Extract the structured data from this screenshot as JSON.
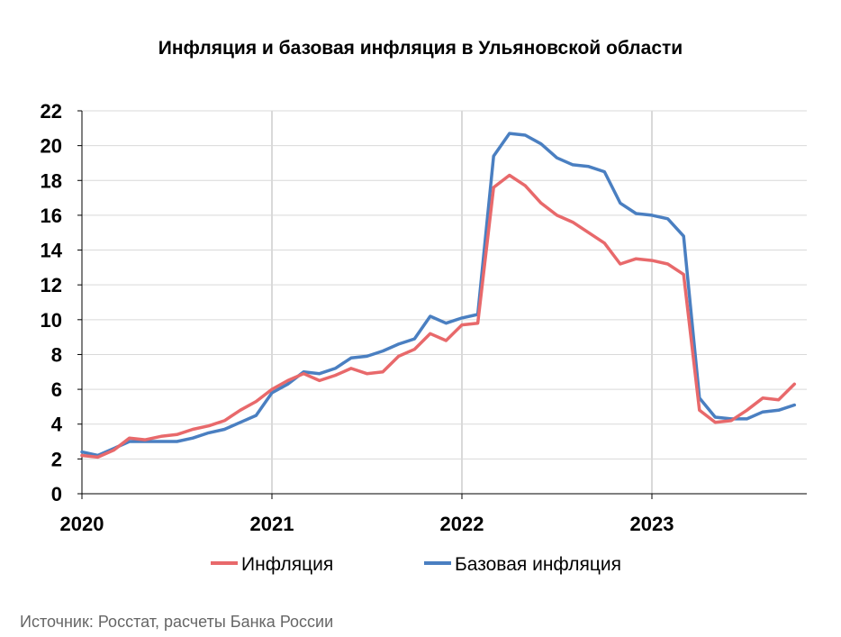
{
  "chart_data": {
    "type": "line",
    "title": "Инфляция и базовая инфляция в Ульяновской области",
    "source": "Источник: Росстат, расчеты Банка России",
    "ylim": [
      0,
      22
    ],
    "yticks": [
      "0",
      "2",
      "4",
      "6",
      "8",
      "10",
      "12",
      "14",
      "16",
      "18",
      "20",
      "22"
    ],
    "xlim": [
      2020.0,
      2023.75
    ],
    "xticks": [
      {
        "value": 2020,
        "label": "2020"
      },
      {
        "value": 2021,
        "label": "2021"
      },
      {
        "value": 2022,
        "label": "2022"
      },
      {
        "value": 2023,
        "label": "2023"
      }
    ],
    "grid": {
      "horizontal": true,
      "vertical_at_years": true
    },
    "legend": "bottom",
    "series": [
      {
        "name": "Инфляция",
        "color": "#e8696b",
        "values": [
          2.2,
          2.1,
          2.5,
          3.2,
          3.1,
          3.3,
          3.4,
          3.7,
          3.9,
          4.2,
          4.8,
          5.3,
          6.0,
          6.5,
          6.9,
          6.5,
          6.8,
          7.2,
          6.9,
          7.0,
          7.9,
          8.3,
          9.2,
          8.8,
          9.7,
          9.8,
          17.6,
          18.3,
          17.7,
          16.7,
          16.0,
          15.6,
          15.0,
          14.4,
          13.2,
          13.5,
          13.4,
          13.2,
          12.6,
          4.8,
          4.1,
          4.2,
          4.8,
          5.5,
          5.4,
          6.3
        ]
      },
      {
        "name": "Базовая инфляция",
        "color": "#4a7fc1",
        "values": [
          2.4,
          2.2,
          2.6,
          3.0,
          3.0,
          3.0,
          3.0,
          3.2,
          3.5,
          3.7,
          4.1,
          4.5,
          5.8,
          6.3,
          7.0,
          6.9,
          7.2,
          7.8,
          7.9,
          8.2,
          8.6,
          8.9,
          10.2,
          9.8,
          10.1,
          10.3,
          19.4,
          20.7,
          20.6,
          20.1,
          19.3,
          18.9,
          18.8,
          18.5,
          16.7,
          16.1,
          16.0,
          15.8,
          14.8,
          5.5,
          4.4,
          4.3,
          4.3,
          4.7,
          4.8,
          5.1
        ]
      }
    ]
  }
}
